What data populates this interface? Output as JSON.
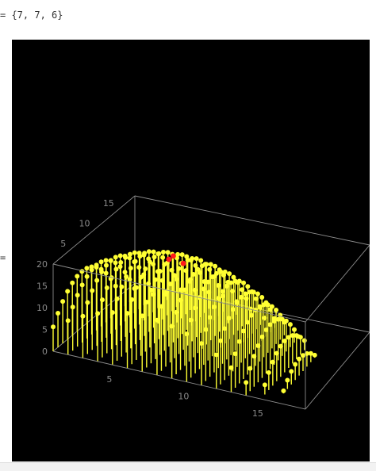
{
  "output_line": "= {7, 7, 6}",
  "left_marker": "=",
  "colors": {
    "background": "#000000",
    "stem": "#ffff33",
    "point": "#ffff33",
    "highlight": "#ff1a1a",
    "box": "#8c8c8c",
    "tick_text": "#8a8a8a"
  },
  "chart_data": {
    "type": "scatter",
    "style": "3d-stem-plot",
    "title": "",
    "xlabel": "",
    "ylabel": "",
    "zlabel": "",
    "xlim": [
      1,
      18
    ],
    "ylim": [
      1,
      18
    ],
    "zlim": [
      0,
      20
    ],
    "x_ticks": [
      "5",
      "10",
      "15"
    ],
    "y_ticks": [
      "5",
      "10",
      "15"
    ],
    "z_ticks": [
      "0",
      "5",
      "10",
      "15",
      "20"
    ],
    "surface": "z = 20 - ((x - 7)^2 + (y - 7)^2) / 5, points with z > 0",
    "grid": false,
    "highlight_points": [
      {
        "x": 7,
        "y": 7,
        "z": 20
      },
      {
        "x": 7,
        "y": 8,
        "z": 19.8
      },
      {
        "x": 8,
        "y": 7,
        "z": 19.8
      }
    ]
  }
}
